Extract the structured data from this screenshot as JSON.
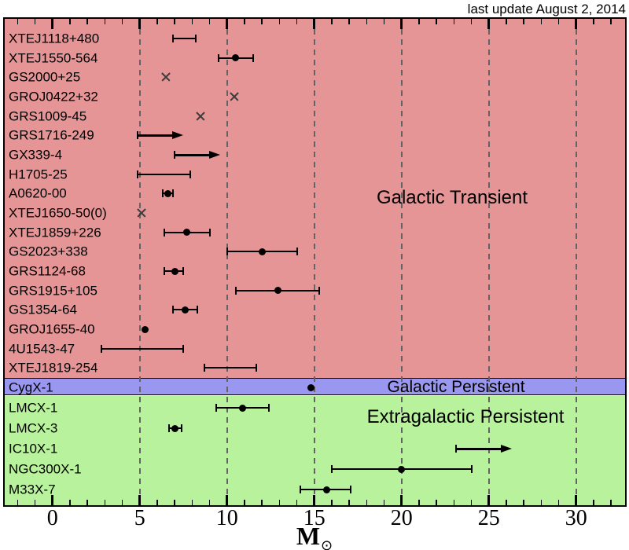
{
  "header": {
    "last_update": "last update August 2, 2014"
  },
  "chart_data": {
    "type": "scatter",
    "title": "",
    "xlabel": "M☉",
    "xlabel_main": "M",
    "xlabel_sub": "⊙",
    "ylabel": "",
    "xlim": [
      -2.8,
      32.8
    ],
    "xticks": [
      0,
      5,
      10,
      15,
      20,
      25,
      30
    ],
    "minor_tick_step": 1,
    "gridlines": [
      5,
      10,
      15,
      20,
      25,
      30
    ],
    "grid_style": "dashed-vertical",
    "legend": "none",
    "marker_legend": {
      "point": "measured mass with error bar",
      "interval": "mass range (no best value)",
      "cross": "single estimate",
      "lower_limit": "lower limit (arrow)"
    },
    "groups": [
      {
        "name": "Galactic Transient",
        "color": "#E59596",
        "sources": [
          {
            "name": "XTEJ1118+480",
            "marker": "interval",
            "mass": null,
            "lo": 6.9,
            "hi": 8.2
          },
          {
            "name": "XTEJ1550-564",
            "marker": "point",
            "mass": 10.5,
            "lo": 9.5,
            "hi": 11.5
          },
          {
            "name": "GS2000+25",
            "marker": "cross",
            "mass": 6.5,
            "lo": null,
            "hi": null
          },
          {
            "name": "GROJ0422+32",
            "marker": "cross",
            "mass": 10.4,
            "lo": null,
            "hi": null
          },
          {
            "name": "GRS1009-45",
            "marker": "cross",
            "mass": 8.5,
            "lo": null,
            "hi": null
          },
          {
            "name": "GRS1716-249",
            "marker": "lower_limit",
            "mass": null,
            "lo": 4.9,
            "arrow_to": 7.5
          },
          {
            "name": "GX339-4",
            "marker": "lower_limit",
            "mass": null,
            "lo": 7.0,
            "arrow_to": 9.6
          },
          {
            "name": "H1705-25",
            "marker": "interval",
            "mass": null,
            "lo": 4.9,
            "hi": 7.9
          },
          {
            "name": "A0620-00",
            "marker": "point",
            "mass": 6.6,
            "lo": 6.3,
            "hi": 6.9
          },
          {
            "name": "XTEJ1650-50(0)",
            "marker": "cross",
            "mass": 5.1,
            "lo": null,
            "hi": null
          },
          {
            "name": "XTEJ1859+226",
            "marker": "point",
            "mass": 7.7,
            "lo": 6.4,
            "hi": 9.0
          },
          {
            "name": "GS2023+338",
            "marker": "point",
            "mass": 12.0,
            "lo": 10.0,
            "hi": 14.0
          },
          {
            "name": "GRS1124-68",
            "marker": "point",
            "mass": 7.0,
            "lo": 6.4,
            "hi": 7.5
          },
          {
            "name": "GRS1915+105",
            "marker": "point",
            "mass": 12.9,
            "lo": 10.5,
            "hi": 15.3
          },
          {
            "name": "GS1354-64",
            "marker": "point",
            "mass": 7.6,
            "lo": 6.9,
            "hi": 8.3
          },
          {
            "name": "GROJ1655-40",
            "marker": "point",
            "mass": 5.3,
            "lo": null,
            "hi": null
          },
          {
            "name": "4U1543-47",
            "marker": "interval",
            "mass": null,
            "lo": 2.8,
            "hi": 7.5
          },
          {
            "name": "XTEJ1819-254",
            "marker": "interval",
            "mass": null,
            "lo": 8.7,
            "hi": 11.7
          }
        ]
      },
      {
        "name": "Galactic Persistent",
        "color": "#9A97F0",
        "sources": [
          {
            "name": "CygX-1",
            "marker": "point",
            "mass": 14.8,
            "lo": null,
            "hi": null
          }
        ]
      },
      {
        "name": "Extragalactic Persistent",
        "color": "#B9F29C",
        "sources": [
          {
            "name": "LMCX-1",
            "marker": "point",
            "mass": 10.9,
            "lo": 9.4,
            "hi": 12.4
          },
          {
            "name": "LMCX-3",
            "marker": "point",
            "mass": 7.0,
            "lo": 6.7,
            "hi": 7.4
          },
          {
            "name": "IC10X-1",
            "marker": "lower_limit",
            "mass": null,
            "lo": 23.1,
            "arrow_to": 26.3
          },
          {
            "name": "NGC300X-1",
            "marker": "point",
            "mass": 20.0,
            "lo": 16.0,
            "hi": 24.0
          },
          {
            "name": "M33X-7",
            "marker": "point",
            "mass": 15.7,
            "lo": 14.2,
            "hi": 17.1
          }
        ]
      }
    ]
  }
}
